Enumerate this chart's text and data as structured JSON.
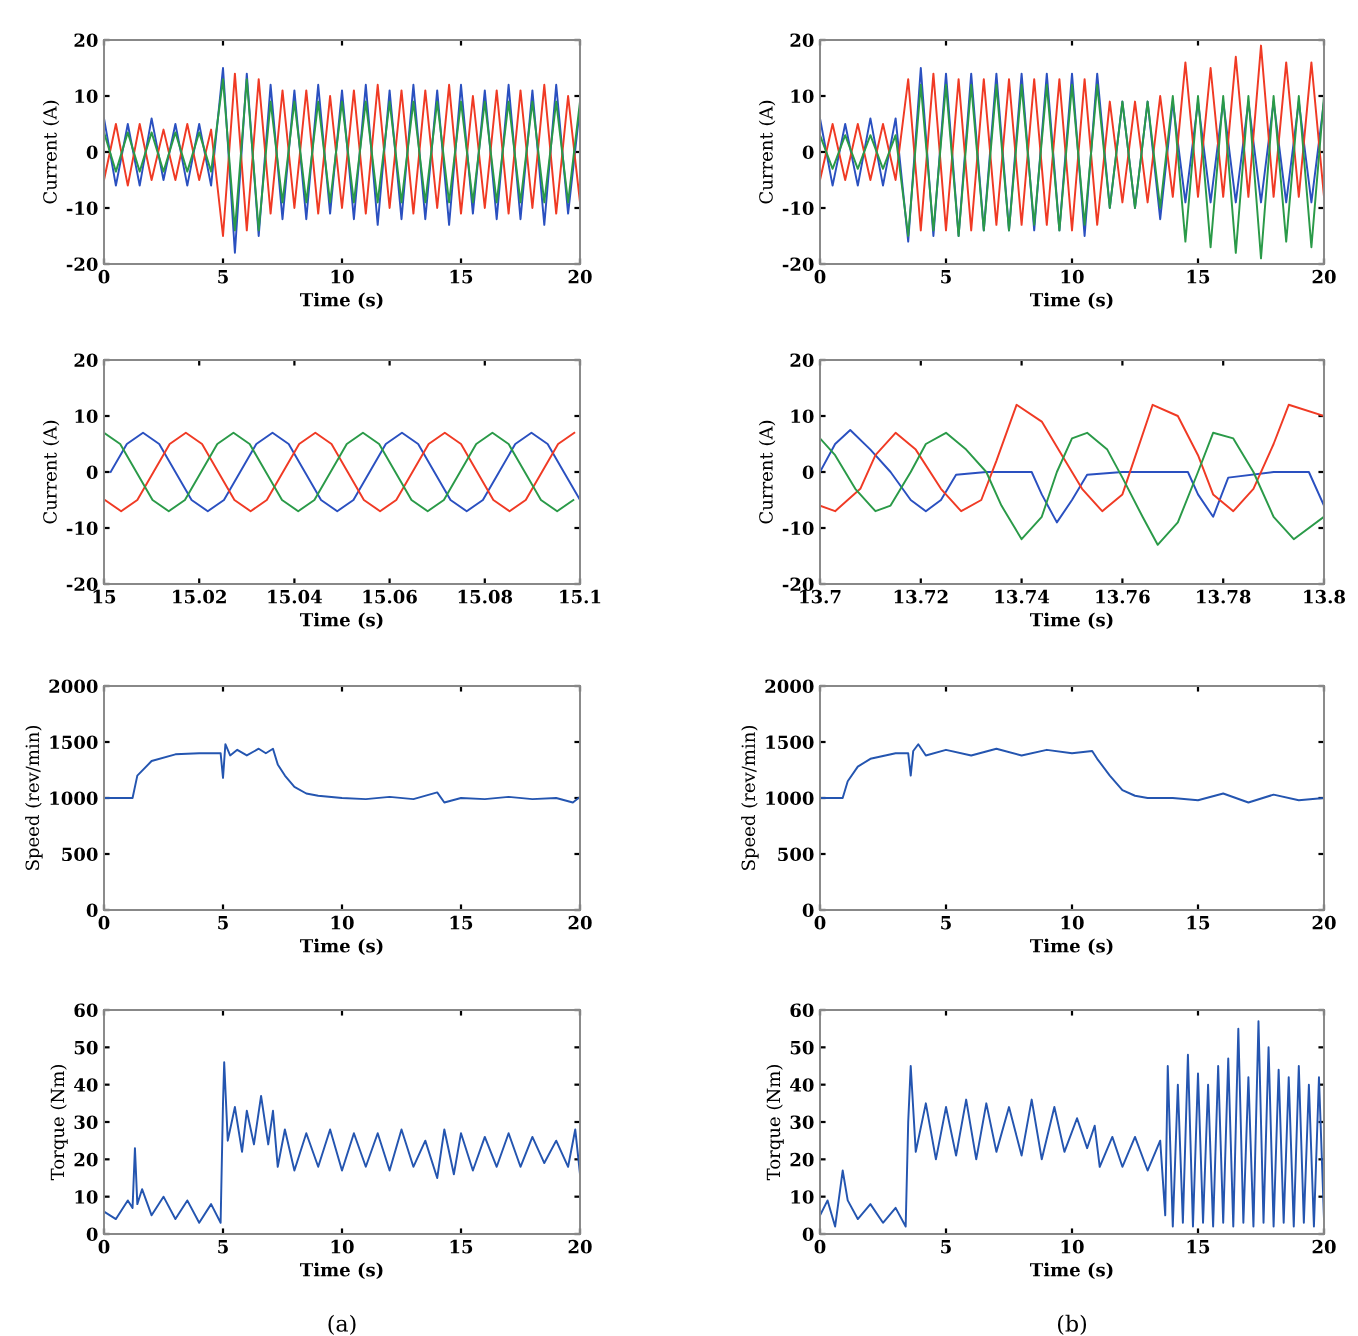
{
  "chart_data": [
    {
      "type": "line",
      "xlabel": "Time (s)",
      "ylabel": "Current (A)",
      "xlim": [
        0,
        20
      ],
      "ylim": [
        -20,
        20
      ],
      "xticks": [
        0,
        5,
        10,
        15,
        20
      ],
      "yticks": [
        -20,
        -10,
        0,
        10,
        20
      ],
      "series": [
        {
          "color": "#2a50c0",
          "x": [
            0,
            0.5,
            1,
            1.5,
            2,
            2.5,
            3,
            3.5,
            4,
            4.5,
            5,
            5.5,
            6,
            6.5,
            7,
            7.5,
            8,
            8.5,
            9,
            9.5,
            10,
            10.5,
            11,
            11.5,
            12,
            12.5,
            13,
            13.5,
            14,
            14.5,
            15,
            15.5,
            16,
            16.5,
            17,
            17.5,
            18,
            18.5,
            19,
            19.5,
            20
          ],
          "values": [
            6,
            -6,
            5,
            -6,
            6,
            -5,
            5,
            -6,
            5,
            -6,
            15,
            -18,
            14,
            -15,
            12,
            -12,
            11,
            -12,
            12,
            -11,
            11,
            -12,
            12,
            -13,
            11,
            -12,
            12,
            -12,
            11,
            -13,
            12,
            -11,
            11,
            -12,
            12,
            -12,
            11,
            -13,
            12,
            -11,
            8
          ]
        },
        {
          "color": "#f03a24",
          "x": [
            0,
            0.5,
            1,
            1.5,
            2,
            2.5,
            3,
            3.5,
            4,
            4.5,
            5,
            5.5,
            6,
            6.5,
            7,
            7.5,
            8,
            8.5,
            9,
            9.5,
            10,
            10.5,
            11,
            11.5,
            12,
            12.5,
            13,
            13.5,
            14,
            14.5,
            15,
            15.5,
            16,
            16.5,
            17,
            17.5,
            18,
            18.5,
            19,
            19.5,
            20
          ],
          "values": [
            -5,
            5,
            -6,
            5,
            -5,
            4,
            -5,
            5,
            -5,
            4,
            -15,
            14,
            -14,
            13,
            -11,
            11,
            -10,
            11,
            -11,
            10,
            -10,
            11,
            -11,
            12,
            -10,
            11,
            -11,
            11,
            -10,
            12,
            -11,
            10,
            -10,
            11,
            -11,
            11,
            -10,
            12,
            -11,
            10,
            -9
          ]
        },
        {
          "color": "#2a9a48",
          "x": [
            0,
            0.5,
            1,
            1.5,
            2,
            2.5,
            3,
            3.5,
            4,
            4.5,
            5,
            5.5,
            6,
            6.5,
            7,
            7.5,
            8,
            8.5,
            9,
            9.5,
            10,
            10.5,
            11,
            11.5,
            12,
            12.5,
            13,
            13.5,
            14,
            14.5,
            15,
            15.5,
            16,
            16.5,
            17,
            17.5,
            18,
            18.5,
            19,
            19.5,
            20
          ],
          "values": [
            3.5,
            -3.5,
            3.5,
            -3.5,
            3.5,
            -3.5,
            3.5,
            -3.5,
            3.5,
            -3.5,
            13,
            -14,
            13,
            -14,
            9,
            -9,
            9,
            -9,
            9,
            -9,
            9,
            -9,
            9,
            -9,
            9,
            -9,
            9,
            -9,
            9,
            -9,
            9,
            -9,
            9,
            -9,
            9,
            -9,
            9,
            -9,
            9,
            -9,
            9
          ]
        }
      ]
    },
    {
      "type": "line",
      "xlabel": "Time (s)",
      "ylabel": "Current (A)",
      "xlim": [
        0,
        20
      ],
      "ylim": [
        -20,
        20
      ],
      "xticks": [
        0,
        5,
        10,
        15,
        20
      ],
      "yticks": [
        -20,
        -10,
        0,
        10,
        20
      ],
      "series": [
        {
          "color": "#2a50c0",
          "x": [
            0,
            0.5,
            1,
            1.5,
            2,
            2.5,
            3,
            3.5,
            4,
            4.5,
            5,
            5.5,
            6,
            6.5,
            7,
            7.5,
            8,
            8.5,
            9,
            9.5,
            10,
            10.5,
            11,
            11.5,
            12,
            12.5,
            13,
            13.5,
            14,
            14.5,
            15,
            15.5,
            16,
            16.5,
            17,
            17.5,
            18,
            18.5,
            19,
            19.5,
            20
          ],
          "values": [
            6,
            -6,
            5,
            -6,
            6,
            -6,
            6,
            -16,
            15,
            -15,
            14,
            -15,
            14,
            -14,
            14,
            -14,
            14,
            -14,
            14,
            -14,
            14,
            -15,
            14,
            -10,
            9,
            -10,
            9,
            -12,
            9,
            -9,
            9,
            -9,
            9,
            -9,
            9,
            -9,
            9,
            -9,
            9,
            -9,
            9
          ]
        },
        {
          "color": "#f03a24",
          "x": [
            0,
            0.5,
            1,
            1.5,
            2,
            2.5,
            3,
            3.5,
            4,
            4.5,
            5,
            5.5,
            6,
            6.5,
            7,
            7.5,
            8,
            8.5,
            9,
            9.5,
            10,
            10.5,
            11,
            11.5,
            12,
            12.5,
            13,
            13.5,
            14,
            14.5,
            15,
            15.5,
            16,
            16.5,
            17,
            17.5,
            18,
            18.5,
            19,
            19.5,
            20
          ],
          "values": [
            -5,
            5,
            -5,
            5,
            -5,
            5,
            -5,
            13,
            -14,
            14,
            -14,
            13,
            -14,
            13,
            -13,
            13,
            -13,
            13,
            -13,
            13,
            -14,
            13,
            -13,
            9,
            -9,
            9,
            -9,
            10,
            -8,
            16,
            -8,
            15,
            -8,
            17,
            -8,
            19,
            -8,
            16,
            -8,
            16,
            -8
          ]
        },
        {
          "color": "#2a9a48",
          "x": [
            0,
            0.5,
            1,
            1.5,
            2,
            2.5,
            3,
            3.5,
            4,
            4.5,
            5,
            5.5,
            6,
            6.5,
            7,
            7.5,
            8,
            8.5,
            9,
            9.5,
            10,
            10.5,
            11,
            11.5,
            12,
            12.5,
            13,
            13.5,
            14,
            14.5,
            15,
            15.5,
            16,
            16.5,
            17,
            17.5,
            18,
            18.5,
            19,
            19.5,
            20
          ],
          "values": [
            3,
            -3,
            3,
            -3,
            3,
            -3,
            3,
            -15,
            12,
            -14,
            12,
            -15,
            12,
            -14,
            12,
            -14,
            12,
            -13,
            12,
            -14,
            12,
            -13,
            12,
            -10,
            9,
            -10,
            9,
            -10,
            10,
            -16,
            10,
            -17,
            10,
            -18,
            10,
            -19,
            10,
            -16,
            10,
            -17,
            10
          ]
        }
      ]
    },
    {
      "type": "line",
      "xlabel": "Time (s)",
      "ylabel": "Current (A)",
      "xlim": [
        15,
        15.1
      ],
      "ylim": [
        -20,
        20
      ],
      "xticks": [
        15,
        15.02,
        15.04,
        15.06,
        15.08,
        15.1
      ],
      "yticks": [
        -20,
        -10,
        0,
        10,
        20
      ],
      "series": [
        {
          "color": "#2a50c0",
          "x": [
            15.0014,
            15.0048,
            15.0082,
            15.0116,
            15.015,
            15.0184,
            15.0218,
            15.0252,
            15.0286,
            15.032,
            15.0354,
            15.0388,
            15.0422,
            15.0456,
            15.049,
            15.0524,
            15.0558,
            15.0592,
            15.0626,
            15.066,
            15.0694,
            15.0728,
            15.0762,
            15.0796,
            15.083,
            15.0864,
            15.0898,
            15.0932,
            15.0966,
            15.1
          ],
          "values": [
            0,
            5,
            7,
            5,
            0,
            -5,
            -7,
            -5,
            0,
            5,
            7,
            5,
            0,
            -5,
            -7,
            -5,
            0,
            5,
            7,
            5,
            0,
            -5,
            -7,
            -5,
            0,
            5,
            7,
            5,
            0,
            -5
          ]
        },
        {
          "color": "#f03a24",
          "x": [
            15.0002,
            15.0036,
            15.007,
            15.0104,
            15.0138,
            15.0172,
            15.0206,
            15.024,
            15.0274,
            15.0308,
            15.0342,
            15.0376,
            15.041,
            15.0444,
            15.0478,
            15.0512,
            15.0546,
            15.058,
            15.0614,
            15.0648,
            15.0682,
            15.0716,
            15.075,
            15.0784,
            15.0818,
            15.0852,
            15.0886,
            15.092,
            15.0954,
            15.0988
          ],
          "values": [
            -5,
            -7,
            -5,
            0,
            5,
            7,
            5,
            0,
            -5,
            -7,
            -5,
            0,
            5,
            7,
            5,
            0,
            -5,
            -7,
            -5,
            0,
            5,
            7,
            5,
            0,
            -5,
            -7,
            -5,
            0,
            5,
            7
          ]
        },
        {
          "color": "#2a9a48",
          "x": [
            15.0,
            15.0034,
            15.0068,
            15.0102,
            15.0136,
            15.017,
            15.0204,
            15.0238,
            15.0272,
            15.0306,
            15.034,
            15.0374,
            15.0408,
            15.0442,
            15.0476,
            15.051,
            15.0544,
            15.0578,
            15.0612,
            15.0646,
            15.068,
            15.0714,
            15.0748,
            15.0782,
            15.0816,
            15.085,
            15.0884,
            15.0918,
            15.0952,
            15.0986
          ],
          "values": [
            7,
            5,
            0,
            -5,
            -7,
            -5,
            0,
            5,
            7,
            5,
            0,
            -5,
            -7,
            -5,
            0,
            5,
            7,
            5,
            0,
            -5,
            -7,
            -5,
            0,
            5,
            7,
            5,
            0,
            -5,
            -7,
            -5
          ]
        }
      ]
    },
    {
      "type": "line",
      "xlabel": "Time (s)",
      "ylabel": "Current (A)",
      "xlim": [
        13.7,
        13.8
      ],
      "ylim": [
        -20,
        20
      ],
      "xticks": [
        13.7,
        13.72,
        13.74,
        13.76,
        13.78,
        13.8
      ],
      "yticks": [
        -20,
        -10,
        0,
        10,
        20
      ],
      "series": [
        {
          "color": "#2a50c0",
          "x": [
            13.7,
            13.703,
            13.706,
            13.71,
            13.714,
            13.718,
            13.721,
            13.724,
            13.727,
            13.733,
            13.742,
            13.744,
            13.747,
            13.75,
            13.753,
            13.76,
            13.773,
            13.775,
            13.778,
            13.781,
            13.79,
            13.797,
            13.8
          ],
          "values": [
            0,
            5,
            7.5,
            4,
            0,
            -5,
            -7,
            -5,
            -0.5,
            0,
            0,
            -4,
            -9,
            -5,
            -0.5,
            0,
            0,
            -4,
            -8,
            -1,
            0,
            0,
            -6
          ]
        },
        {
          "color": "#f03a24",
          "x": [
            13.7,
            13.703,
            13.708,
            13.711,
            13.715,
            13.719,
            13.724,
            13.728,
            13.732,
            13.735,
            13.739,
            13.744,
            13.748,
            13.752,
            13.756,
            13.76,
            13.763,
            13.766,
            13.771,
            13.775,
            13.778,
            13.782,
            13.786,
            13.79,
            13.793,
            13.8
          ],
          "values": [
            -6,
            -7,
            -3,
            3,
            7,
            4,
            -3,
            -7,
            -5,
            2,
            12,
            9,
            3,
            -3,
            -7,
            -4,
            4,
            12,
            10,
            3,
            -4,
            -7,
            -3,
            5,
            12,
            10
          ]
        },
        {
          "color": "#2a9a48",
          "x": [
            13.7,
            13.703,
            13.707,
            13.711,
            13.714,
            13.718,
            13.721,
            13.725,
            13.729,
            13.733,
            13.736,
            13.74,
            13.744,
            13.747,
            13.75,
            13.753,
            13.757,
            13.76,
            13.764,
            13.767,
            13.771,
            13.775,
            13.778,
            13.782,
            13.786,
            13.79,
            13.794,
            13.8
          ],
          "values": [
            6,
            3,
            -3,
            -7,
            -6,
            0,
            5,
            7,
            4,
            0,
            -6,
            -12,
            -8,
            0,
            6,
            7,
            4,
            -1,
            -8,
            -13,
            -9,
            0,
            7,
            6,
            0,
            -8,
            -12,
            -8
          ]
        }
      ]
    },
    {
      "type": "line",
      "xlabel": "Time (s)",
      "ylabel": "Speed (rev/min)",
      "xlim": [
        0,
        20
      ],
      "ylim": [
        0,
        2000
      ],
      "xticks": [
        0,
        5,
        10,
        15,
        20
      ],
      "yticks": [
        0,
        500,
        1000,
        1500,
        2000
      ],
      "series": [
        {
          "color": "#2455b0",
          "x": [
            0,
            1.2,
            1.4,
            2,
            3,
            4,
            4.9,
            5,
            5.1,
            5.3,
            5.6,
            6,
            6.5,
            6.8,
            7.1,
            7.3,
            7.6,
            8,
            8.5,
            9,
            10,
            11,
            12,
            13,
            14,
            14.3,
            15,
            16,
            17,
            18,
            19,
            19.7,
            20
          ],
          "values": [
            1000,
            1000,
            1200,
            1330,
            1390,
            1400,
            1400,
            1180,
            1480,
            1380,
            1430,
            1380,
            1440,
            1400,
            1440,
            1300,
            1200,
            1100,
            1040,
            1020,
            1000,
            990,
            1010,
            990,
            1050,
            960,
            1000,
            990,
            1010,
            990,
            1000,
            960,
            1010
          ]
        }
      ]
    },
    {
      "type": "line",
      "xlabel": "Time (s)",
      "ylabel": "Speed (rev/min)",
      "xlim": [
        0,
        20
      ],
      "ylim": [
        0,
        2000
      ],
      "xticks": [
        0,
        5,
        10,
        15,
        20
      ],
      "yticks": [
        0,
        500,
        1000,
        1500,
        2000
      ],
      "series": [
        {
          "color": "#2455b0",
          "x": [
            0,
            0.9,
            1.1,
            1.5,
            2,
            3,
            3.5,
            3.6,
            3.7,
            3.9,
            4.2,
            5,
            6,
            7,
            8,
            9,
            10,
            10.8,
            11,
            11.5,
            12,
            12.5,
            13,
            14,
            15,
            16,
            17,
            18,
            19,
            20
          ],
          "values": [
            1000,
            1000,
            1150,
            1280,
            1350,
            1400,
            1400,
            1200,
            1420,
            1480,
            1380,
            1430,
            1380,
            1440,
            1380,
            1430,
            1400,
            1420,
            1350,
            1200,
            1070,
            1020,
            1000,
            1000,
            980,
            1040,
            960,
            1030,
            980,
            1000
          ]
        }
      ]
    },
    {
      "type": "line",
      "xlabel": "Time (s)",
      "ylabel": "Torque (Nm)",
      "xlim": [
        0,
        20
      ],
      "ylim": [
        0,
        60
      ],
      "xticks": [
        0,
        5,
        10,
        15,
        20
      ],
      "yticks": [
        0,
        10,
        20,
        30,
        40,
        50,
        60
      ],
      "annotations": [
        "(a)"
      ],
      "series": [
        {
          "color": "#2455b0",
          "x": [
            0,
            0.5,
            1,
            1.2,
            1.3,
            1.4,
            1.6,
            2,
            2.5,
            3,
            3.5,
            4,
            4.5,
            4.9,
            5,
            5.05,
            5.2,
            5.5,
            5.8,
            6,
            6.3,
            6.6,
            6.9,
            7.1,
            7.3,
            7.6,
            8,
            8.5,
            9,
            9.5,
            10,
            10.5,
            11,
            11.5,
            12,
            12.5,
            13,
            13.5,
            14,
            14.3,
            14.7,
            15,
            15.5,
            16,
            16.5,
            17,
            17.5,
            18,
            18.5,
            19,
            19.5,
            19.8,
            20
          ],
          "values": [
            6,
            4,
            9,
            7,
            23,
            8,
            12,
            5,
            10,
            4,
            9,
            3,
            8,
            3,
            35,
            46,
            25,
            34,
            22,
            33,
            24,
            37,
            24,
            33,
            18,
            28,
            17,
            27,
            18,
            28,
            17,
            27,
            18,
            27,
            17,
            28,
            18,
            25,
            15,
            28,
            16,
            27,
            17,
            26,
            18,
            27,
            18,
            26,
            19,
            25,
            18,
            28,
            16
          ]
        }
      ]
    },
    {
      "type": "line",
      "xlabel": "Time (s)",
      "ylabel": "Torque (Nm)",
      "xlim": [
        0,
        20
      ],
      "ylim": [
        0,
        60
      ],
      "xticks": [
        0,
        5,
        10,
        15,
        20
      ],
      "yticks": [
        0,
        10,
        20,
        30,
        40,
        50,
        60
      ],
      "annotations": [
        "(b)"
      ],
      "series": [
        {
          "color": "#2455b0",
          "x": [
            0,
            0.3,
            0.6,
            0.9,
            1.1,
            1.5,
            2,
            2.5,
            3,
            3.4,
            3.5,
            3.6,
            3.8,
            4.2,
            4.6,
            5,
            5.4,
            5.8,
            6.2,
            6.6,
            7,
            7.5,
            8,
            8.4,
            8.8,
            9.3,
            9.7,
            10.2,
            10.6,
            10.9,
            11.1,
            11.6,
            12,
            12.5,
            13,
            13.5,
            13.7,
            13.8,
            14,
            14.2,
            14.4,
            14.6,
            14.8,
            15,
            15.2,
            15.4,
            15.6,
            15.8,
            16,
            16.2,
            16.4,
            16.6,
            16.8,
            17,
            17.2,
            17.4,
            17.6,
            17.8,
            18,
            18.2,
            18.4,
            18.6,
            18.8,
            19,
            19.2,
            19.4,
            19.6,
            19.8,
            20
          ],
          "values": [
            5,
            9,
            2,
            17,
            9,
            4,
            8,
            3,
            7,
            2,
            30,
            45,
            22,
            35,
            20,
            34,
            21,
            36,
            20,
            35,
            22,
            34,
            21,
            36,
            20,
            34,
            22,
            31,
            23,
            29,
            18,
            26,
            18,
            26,
            17,
            25,
            5,
            45,
            2,
            40,
            3,
            48,
            2,
            43,
            3,
            40,
            2,
            45,
            3,
            47,
            2,
            55,
            3,
            42,
            2,
            57,
            3,
            50,
            2,
            44,
            3,
            42,
            2,
            45,
            3,
            40,
            2,
            42,
            4
          ]
        }
      ]
    }
  ]
}
